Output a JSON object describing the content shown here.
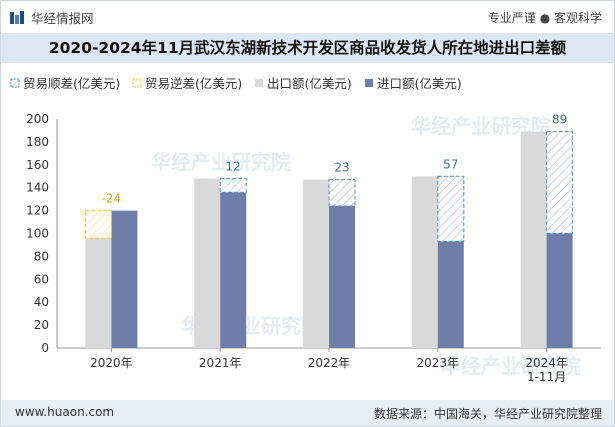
{
  "header": {
    "brand": "华经情报网",
    "tagline": "专业严谨 ● 客观科学"
  },
  "title": "2020-2024年11月武汉东湖新技术开发区商品收发货人所在地进出口差额",
  "watermark": "华经产业研究院",
  "footer": {
    "url": "www.huaon.com",
    "source": "数据来源：中国海关，华经产业研究院整理"
  },
  "colors": {
    "export": "#d9d9d9",
    "import": "#6d7fa8",
    "surplus": "#5b8fbe",
    "deficit": "#f2c744",
    "label_surplus": "#3f6fa0",
    "label_deficit": "#e0a600",
    "title_band": "#dfe6f3"
  },
  "chart_data": {
    "type": "bar",
    "categories": [
      "2020年",
      "2021年",
      "2022年",
      "2023年",
      "2024年\n1-11月"
    ],
    "series": [
      {
        "name": "出口额(亿美元)",
        "values": [
          96,
          148,
          147,
          150,
          189
        ]
      },
      {
        "name": "进口额(亿美元)",
        "values": [
          120,
          136,
          124,
          93,
          100
        ]
      }
    ],
    "balance": {
      "surplus_name": "贸易顺差(亿美元)",
      "deficit_name": "贸易逆差(亿美元)",
      "values": [
        -24,
        12,
        23,
        57,
        89
      ],
      "labels": [
        "-24",
        "12",
        "23",
        "57",
        "89"
      ]
    },
    "legend_order": [
      "贸易顺差(亿美元)",
      "贸易逆差(亿美元)",
      "出口额(亿美元)",
      "进口额(亿美元)"
    ],
    "legend_position": "top-left",
    "ylim": [
      0,
      200
    ],
    "yticks": [
      0,
      20,
      40,
      60,
      80,
      100,
      120,
      140,
      160,
      180,
      200
    ],
    "grid": false,
    "xlabel": "",
    "ylabel": ""
  }
}
